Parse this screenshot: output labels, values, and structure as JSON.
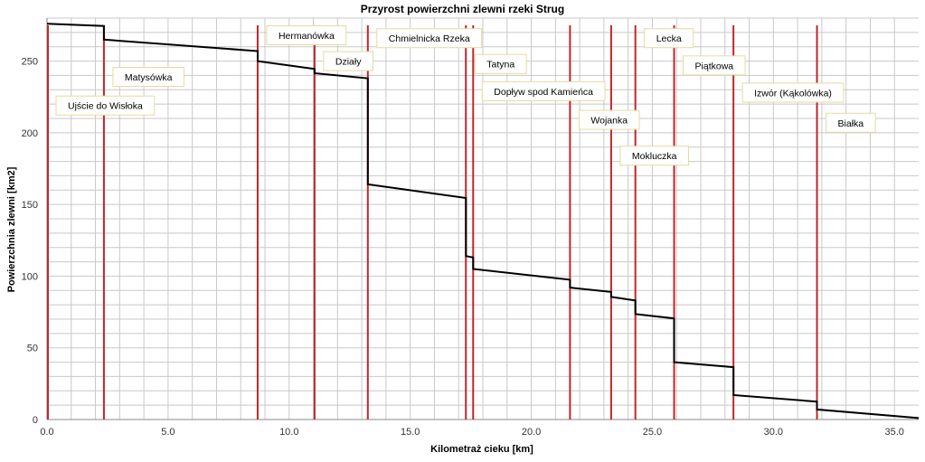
{
  "chart_data": {
    "type": "line",
    "title": "Przyrost powierzchni zlewni rzeki Strug",
    "xlabel": "Kilometraż cieku [km]",
    "ylabel": "Powierzchnia zlewni [km2]",
    "xlim": [
      0,
      36
    ],
    "ylim": [
      0,
      280
    ],
    "x_ticks": [
      0,
      5,
      10,
      15,
      20,
      25,
      30,
      35
    ],
    "x_tick_labels": [
      "0.0",
      "5.0",
      "10.0",
      "15.0",
      "20.0",
      "25.0",
      "30.0",
      "35.0"
    ],
    "y_ticks": [
      0,
      50,
      100,
      150,
      200,
      250
    ],
    "y_tick_labels": [
      "0",
      "50",
      "100",
      "150",
      "200",
      "250"
    ],
    "grid": true,
    "colors": {
      "series": "#000000",
      "tributary_lines": "#c0262c",
      "grid": "#c8c8c8",
      "annotation_border": "#e8d9a0"
    },
    "series": [
      {
        "x": [
          0.0,
          2.35,
          2.35,
          8.7,
          8.7,
          11.05,
          11.05,
          13.25,
          13.25,
          17.3,
          17.3,
          17.6,
          17.6,
          21.6,
          21.6,
          23.3,
          23.3,
          24.3,
          24.3,
          25.9,
          25.9,
          28.35,
          28.35,
          31.8,
          31.8,
          36.0
        ],
        "y": [
          276,
          274.5,
          265,
          257,
          250,
          244.5,
          241.5,
          238,
          164,
          154.5,
          114,
          113,
          105,
          97.5,
          92,
          89,
          85.5,
          83,
          73.5,
          70.5,
          40,
          36.5,
          17,
          12.5,
          7,
          1
        ]
      }
    ],
    "tributaries": [
      {
        "x": 0.0,
        "label": "Ujście do Wisłoka",
        "label_y": 219
      },
      {
        "x": 2.35,
        "label": "Matysówka",
        "label_y": 239
      },
      {
        "x": 8.7,
        "label": "Hermanówka",
        "label_y": 268
      },
      {
        "x": 11.05,
        "label": "Działy",
        "label_y": 250
      },
      {
        "x": 13.25,
        "label": "Chmielnicka Rzeka",
        "label_y": 266
      },
      {
        "x": 17.3,
        "label": "Tatyna",
        "label_y": 248
      },
      {
        "x": 17.6,
        "label": "Dopływ spod Kamieńca",
        "label_y": 229
      },
      {
        "x": 21.6,
        "label": "Wojanka",
        "label_y": 209
      },
      {
        "x": 23.3,
        "label": "Mokluczka",
        "label_y": 184
      },
      {
        "x": 24.3,
        "label": "Lecka",
        "label_y": 266
      },
      {
        "x": 25.9,
        "label": "Piątkowa",
        "label_y": 247
      },
      {
        "x": 28.35,
        "label": "Izwór (Kąkolówka)",
        "label_y": 228
      },
      {
        "x": 31.8,
        "label": "Białka",
        "label_y": 207
      }
    ]
  }
}
